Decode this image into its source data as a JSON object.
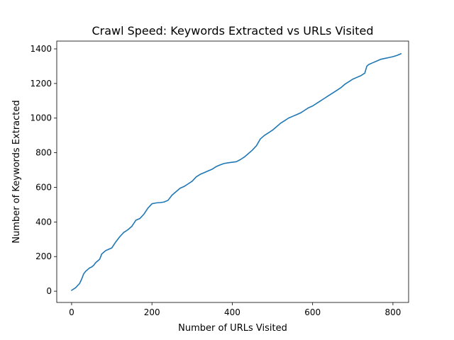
{
  "chart_data": {
    "type": "line",
    "title": "Crawl Speed: Keywords Extracted vs URLs Visited",
    "xlabel": "Number of URLs Visited",
    "ylabel": "Number of Keywords Extracted",
    "xlim": [
      -37,
      839
    ],
    "ylim": [
      -65,
      1445
    ],
    "xticks": [
      0,
      200,
      400,
      600,
      800
    ],
    "yticks": [
      0,
      200,
      400,
      600,
      800,
      1000,
      1200,
      1400
    ],
    "grid": false,
    "legend": "none",
    "color": "#1f77b4",
    "series": [
      {
        "x": [
          0,
          10,
          20,
          25,
          30,
          35,
          40,
          45,
          50,
          55,
          60,
          65,
          70,
          75,
          80,
          85,
          90,
          95,
          100,
          110,
          120,
          130,
          140,
          150,
          160,
          170,
          180,
          190,
          200,
          210,
          220,
          230,
          240,
          250,
          260,
          270,
          280,
          290,
          300,
          310,
          320,
          330,
          340,
          350,
          360,
          370,
          380,
          390,
          400,
          410,
          420,
          430,
          440,
          450,
          460,
          465,
          470,
          480,
          490,
          500,
          510,
          520,
          530,
          540,
          550,
          560,
          570,
          580,
          590,
          600,
          610,
          620,
          630,
          640,
          650,
          660,
          670,
          680,
          690,
          700,
          710,
          720,
          730,
          735,
          740,
          750,
          760,
          770,
          780,
          790,
          800,
          810,
          820
        ],
        "y": [
          5,
          20,
          45,
          70,
          100,
          115,
          125,
          135,
          140,
          150,
          165,
          175,
          185,
          215,
          225,
          235,
          240,
          245,
          250,
          285,
          315,
          340,
          355,
          375,
          410,
          420,
          445,
          480,
          505,
          510,
          512,
          515,
          525,
          555,
          575,
          595,
          605,
          620,
          635,
          660,
          675,
          685,
          695,
          705,
          720,
          730,
          738,
          742,
          745,
          748,
          760,
          775,
          795,
          815,
          840,
          860,
          880,
          900,
          915,
          930,
          950,
          970,
          985,
          1000,
          1010,
          1020,
          1030,
          1045,
          1060,
          1070,
          1085,
          1100,
          1115,
          1130,
          1145,
          1160,
          1175,
          1195,
          1210,
          1225,
          1235,
          1245,
          1260,
          1300,
          1310,
          1320,
          1330,
          1340,
          1345,
          1350,
          1355,
          1362,
          1372
        ]
      }
    ]
  }
}
